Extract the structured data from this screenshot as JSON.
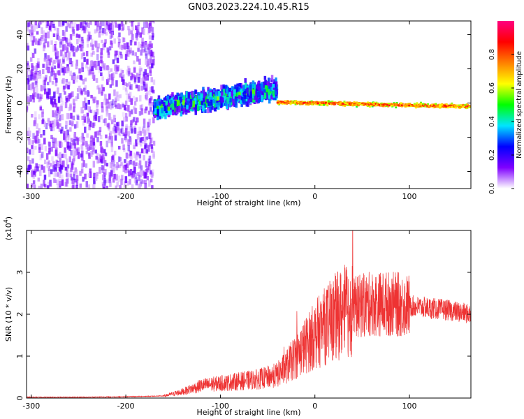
{
  "title": "GN03.2023.224.10.45.R15",
  "chart_data": [
    {
      "type": "heatmap",
      "xlabel": "Height of straight line (km)",
      "ylabel": "Frequency (Hz)",
      "xlim": [
        -305,
        165
      ],
      "ylim": [
        -50,
        48
      ],
      "x_ticks": [
        -300,
        -200,
        -100,
        0,
        100
      ],
      "x_tick_labels": [
        "-300",
        "-200",
        "-100",
        "0",
        "100"
      ],
      "y_ticks": [
        -40,
        -20,
        0,
        20,
        40
      ],
      "y_tick_labels": [
        "-40",
        "-20",
        "0",
        "20",
        "40"
      ],
      "colorbar": {
        "label": "Normalized spectral amplitude",
        "range": [
          0,
          1
        ],
        "ticks": [
          0.0,
          0.2,
          0.4,
          0.6,
          0.8
        ],
        "tick_labels": [
          "0.0",
          "0.2",
          "0.4",
          "0.6",
          "0.8"
        ],
        "colors": [
          "#ffffff",
          "#7f00ff",
          "#0000ff",
          "#00e5ff",
          "#00ff00",
          "#ffff00",
          "#ff8000",
          "#ff0000",
          "#ff0080"
        ]
      },
      "regions": [
        {
          "x": [
            -305,
            -170
          ],
          "freq_center": 0,
          "freq_halfwidth": 50,
          "amplitude": 0.1
        },
        {
          "x": [
            -170,
            -40
          ],
          "freq_center_start": -3,
          "freq_center_end": 8,
          "freq_halfwidth": 10,
          "amplitude": 0.35
        },
        {
          "x": [
            -40,
            165
          ],
          "freq_center_start": 0.5,
          "freq_center_end": -2,
          "freq_halfwidth": 3,
          "amplitude": 0.85
        }
      ]
    },
    {
      "type": "line",
      "ylabel": "SNR (10 * v/v)",
      "xlabel": "Height of straight line (km)",
      "y_multiplier": "(x10",
      "y_multiplier_exp": "4",
      "y_multiplier_close": ")",
      "xlim": [
        -305,
        165
      ],
      "ylim": [
        0,
        4
      ],
      "x_ticks": [
        -300,
        -200,
        -100,
        0,
        100
      ],
      "x_tick_labels": [
        "-300",
        "-200",
        "-100",
        "0",
        "100"
      ],
      "y_ticks": [
        0,
        1,
        2,
        3
      ],
      "y_tick_labels": [
        "0",
        "1",
        "2",
        "3"
      ],
      "line_color": "#ee3333",
      "envelope_x": [
        -305,
        -250,
        -200,
        -160,
        -140,
        -120,
        -100,
        -80,
        -60,
        -40,
        -30,
        -20,
        -10,
        0,
        10,
        20,
        30,
        40,
        50,
        60,
        80,
        100,
        120,
        140,
        165
      ],
      "envelope_y": [
        0.02,
        0.02,
        0.03,
        0.05,
        0.15,
        0.3,
        0.35,
        0.4,
        0.45,
        0.55,
        0.75,
        1.0,
        1.25,
        1.5,
        1.7,
        1.9,
        2.05,
        2.15,
        2.2,
        2.25,
        2.25,
        2.2,
        2.15,
        2.1,
        2.0
      ],
      "peak": {
        "x": 40,
        "y": 4.0
      }
    }
  ]
}
